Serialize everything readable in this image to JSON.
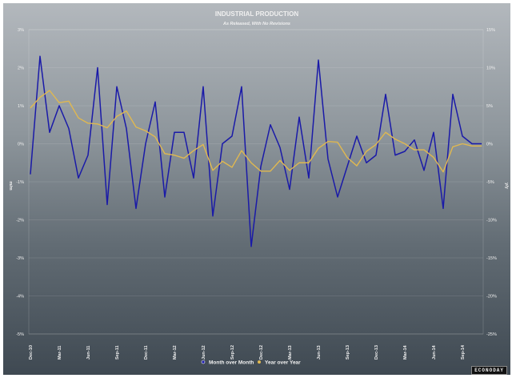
{
  "chart_data": {
    "type": "line",
    "title": "INDUSTRIAL PRODUCTION",
    "subtitle": "As Released, With No Revisions",
    "ylabel": "m/m",
    "y2label": "y/y",
    "ylim": [
      -5,
      3
    ],
    "y2lim": [
      -25,
      15
    ],
    "yticks": [
      "3%",
      "2%",
      "1%",
      "0%",
      "-1%",
      "-2%",
      "-3%",
      "-4%",
      "-5%"
    ],
    "y2ticks": [
      "15%",
      "10%",
      "5%",
      "0%",
      "-5%",
      "-10%",
      "-15%",
      "-20%",
      "-25%"
    ],
    "xticks": [
      "Dec-10",
      "Mar-11",
      "Jun-11",
      "Sep-11",
      "Dec-11",
      "Mar-12",
      "Jun-12",
      "Sep-12",
      "Dec-12",
      "Mar-13",
      "Jun-13",
      "Sep-13",
      "Dec-13",
      "Mar-14",
      "Jun-14",
      "Sep-14"
    ],
    "x": [
      "Dec-10",
      "Jan-11",
      "Feb-11",
      "Mar-11",
      "Apr-11",
      "May-11",
      "Jun-11",
      "Jul-11",
      "Aug-11",
      "Sep-11",
      "Oct-11",
      "Nov-11",
      "Dec-11",
      "Jan-12",
      "Feb-12",
      "Mar-12",
      "Apr-12",
      "May-12",
      "Jun-12",
      "Jul-12",
      "Aug-12",
      "Sep-12",
      "Oct-12",
      "Nov-12",
      "Dec-12",
      "Jan-13",
      "Feb-13",
      "Mar-13",
      "Apr-13",
      "May-13",
      "Jun-13",
      "Jul-13",
      "Aug-13",
      "Sep-13",
      "Oct-13",
      "Nov-13",
      "Dec-13",
      "Jan-14",
      "Feb-14",
      "Mar-14",
      "Apr-14",
      "May-14",
      "Jun-14",
      "Jul-14",
      "Aug-14",
      "Sep-14",
      "Oct-14",
      "Nov-14"
    ],
    "series": [
      {
        "name": "Month over Month",
        "axis": "left",
        "color": "#1a1aa8",
        "values": [
          -0.8,
          2.3,
          0.3,
          1.0,
          0.4,
          -0.9,
          -0.3,
          2.0,
          -1.6,
          1.5,
          0.4,
          -1.7,
          0.0,
          1.1,
          -1.4,
          0.3,
          0.3,
          -0.9,
          1.5,
          -1.9,
          0.0,
          0.2,
          1.5,
          -2.7,
          -0.6,
          0.5,
          -0.1,
          -1.2,
          0.7,
          -0.9,
          2.2,
          -0.4,
          -1.4,
          -0.6,
          0.2,
          -0.5,
          -0.3,
          1.3,
          -0.3,
          -0.2,
          0.1,
          -0.7,
          0.3,
          -1.7,
          1.3,
          0.2,
          0.0,
          0.0
        ]
      },
      {
        "name": "Year over Year",
        "axis": "right",
        "color": "#e0b850",
        "values": [
          4.7,
          6.1,
          7.0,
          5.4,
          5.6,
          3.4,
          2.7,
          2.6,
          2.1,
          3.6,
          4.3,
          2.2,
          1.7,
          0.9,
          -1.3,
          -1.5,
          -1.9,
          -0.9,
          -0.1,
          -3.5,
          -2.3,
          -3.1,
          -0.9,
          -2.5,
          -3.6,
          -3.6,
          -2.2,
          -3.5,
          -2.5,
          -2.5,
          -0.6,
          0.3,
          0.2,
          -1.8,
          -2.9,
          -1.0,
          -0.1,
          1.5,
          0.6,
          0.0,
          -0.8,
          -0.8,
          -1.8,
          -3.7,
          -0.4,
          0.0,
          -0.3,
          -0.3
        ]
      }
    ],
    "legend": "bottom-center",
    "grid": true
  },
  "brand": "ECONODAY"
}
